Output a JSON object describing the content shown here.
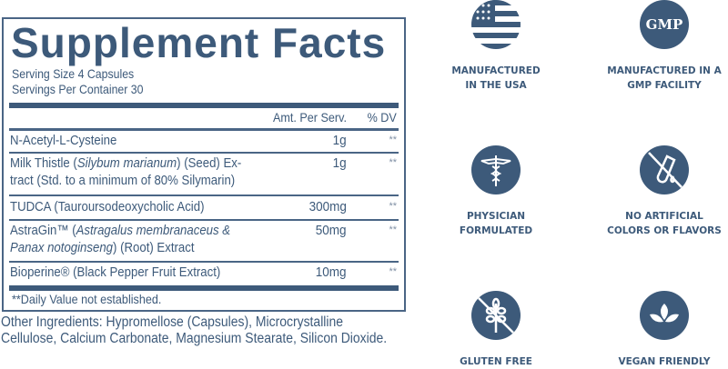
{
  "label": {
    "title": "Supplement Facts",
    "serving_size": "Serving Size 4 Capsules",
    "servings_per_container": "Servings Per Container 30",
    "header": {
      "amount": "Amt. Per Serv.",
      "dv": "% DV"
    },
    "ingredients": [
      {
        "name_parts": [
          "N-Acetyl-L-Cysteine"
        ],
        "amount": "1g",
        "dv": "**"
      },
      {
        "name_parts": [
          "Milk Thistle (",
          "Silybum marianum",
          ") (Seed) Ex-",
          "tract (Std. to a minimum of 80% Silymarin)"
        ],
        "amount": "1g",
        "dv": "**"
      },
      {
        "name_parts": [
          "TUDCA (Tauroursodeoxycholic Acid)"
        ],
        "amount": "300mg",
        "dv": "**"
      },
      {
        "name_parts": [
          "AstraGin™ (",
          "Astragalus membranaceus &",
          "Panax notoginseng",
          ") (Root) Extract"
        ],
        "amount": "50mg",
        "dv": "**"
      },
      {
        "name_parts": [
          "Bioperine® (Black Pepper Fruit Extract)"
        ],
        "amount": "10mg",
        "dv": "**"
      }
    ],
    "footnote": "**Daily Value not established."
  },
  "other_ingredients": [
    "Other Ingredients: Hypromellose (Capsules), Microcrystalline",
    "Cellulose, Calcium Carbonate, Magnesium Stearate, Silicon Dioxide."
  ],
  "badges": [
    {
      "icon": "usa-flag-icon",
      "lines": [
        "MANUFACTURED",
        "IN THE USA"
      ]
    },
    {
      "icon": "gmp-icon",
      "icon_text": "GMP",
      "lines": [
        "MANUFACTURED IN A",
        "GMP FACILITY"
      ]
    },
    {
      "icon": "caduceus-icon",
      "lines": [
        "PHYSICIAN",
        "FORMULATED"
      ]
    },
    {
      "icon": "no-test-tube-icon",
      "lines": [
        "NO ARTIFICIAL",
        "COLORS OR FLAVORS"
      ]
    },
    {
      "icon": "no-wheat-icon",
      "lines": [
        "GLUTEN FREE"
      ]
    },
    {
      "icon": "leaf-icon",
      "lines": [
        "VEGAN FRIENDLY"
      ]
    }
  ],
  "colors": {
    "primary": "#3d5a7a"
  }
}
